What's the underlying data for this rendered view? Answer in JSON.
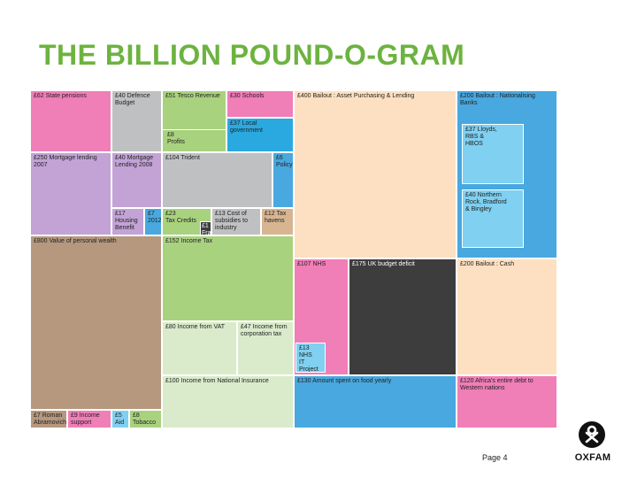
{
  "title": "THE BILLION POUND-O-GRAM",
  "page_label": "Page 4",
  "logo_text": "OXFAM",
  "cells": [
    {
      "id": "state-pensions",
      "text": "£62 State pensions"
    },
    {
      "id": "defence-budget",
      "text": "£40 Defence\nBudget"
    },
    {
      "id": "tesco-revenue",
      "text": "£51 Tesco Revenue"
    },
    {
      "id": "schools",
      "text": "£30 Schools"
    },
    {
      "id": "local-government",
      "text": "£37 Local\ngovernment"
    },
    {
      "id": "profits",
      "text": "£8\nProfits"
    },
    {
      "id": "bailout-asset",
      "text": "£400 Bailout : Asset Purchasing & Lending"
    },
    {
      "id": "bailout-nationalising",
      "text": "£200 Bailout : Nationalising\nBanks"
    },
    {
      "id": "lloyds",
      "text": "£37 Lloyds,\nRBS &\nHBOS"
    },
    {
      "id": "northern-rock",
      "text": "£40 Northern\nRock, Bradford\n& Bingley"
    },
    {
      "id": "mortgage-2007",
      "text": "£250 Mortgage lending\n2007"
    },
    {
      "id": "mortgage-2008",
      "text": "£40 Mortgage\nLending 2008"
    },
    {
      "id": "trident",
      "text": "£104 Trident"
    },
    {
      "id": "policy",
      "text": "£6\nPolicy"
    },
    {
      "id": "housing-benefit",
      "text": "£17\nHousing\nBenefit"
    },
    {
      "id": "olympics",
      "text": "£7\n2012"
    },
    {
      "id": "tax-credits",
      "text": "£23\nTax Credits"
    },
    {
      "id": "fraud",
      "text": "£1\nFraud"
    },
    {
      "id": "subsidies",
      "text": "£13 Cost of\nsubsidies to\nindustry"
    },
    {
      "id": "tax-havens",
      "text": "£12 Tax\nhavens"
    },
    {
      "id": "personal-wealth",
      "text": "£800 Value of personal wealth"
    },
    {
      "id": "income-tax",
      "text": "£152 Income Tax"
    },
    {
      "id": "nhs",
      "text": "£107 NHS"
    },
    {
      "id": "uk-deficit",
      "text": "£175 UK budget deficit"
    },
    {
      "id": "bailout-cash",
      "text": "£200 Bailout : Cash"
    },
    {
      "id": "vat",
      "text": "£80 Income from VAT"
    },
    {
      "id": "corporation-tax",
      "text": "£47 Income from\ncorporation tax"
    },
    {
      "id": "nhs-it",
      "text": "£13\nNHS\nIT Project"
    },
    {
      "id": "national-insurance",
      "text": "£100 Income from National Insurance"
    },
    {
      "id": "food-spent",
      "text": "£130 Amount spent on food yearly"
    },
    {
      "id": "africa-debt",
      "text": "£120 Africa's entire debt to\nWestern nations"
    },
    {
      "id": "human-abramovich",
      "text": "£7 Roman\nAbramovich"
    },
    {
      "id": "income-support",
      "text": "£9 Income\nsupport"
    },
    {
      "id": "aid",
      "text": "£5\nAid"
    },
    {
      "id": "tobacco",
      "text": "£8\nTobacco"
    }
  ]
}
